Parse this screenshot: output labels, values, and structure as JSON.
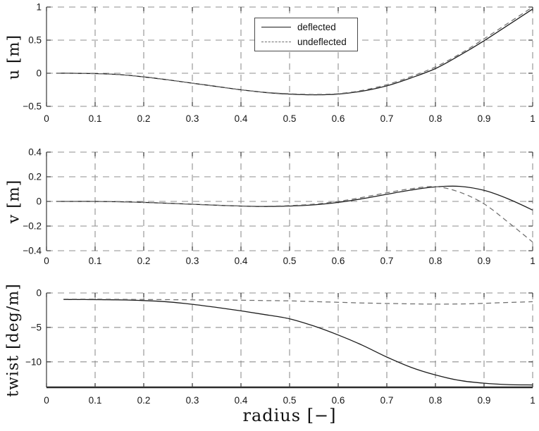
{
  "figure": {
    "legend": {
      "entries": [
        "deflected",
        "undeflected"
      ],
      "position": "upper area of first subplot, center-right"
    },
    "colors": {
      "background": "#ffffff",
      "curve_solid": "#1c1c1c",
      "curve_dashed": "#6e6e6e",
      "grid": "#8f8f8f",
      "axis": "#3a3a3a",
      "bottom_axis": "#2b2b2b",
      "text": "#161616"
    }
  },
  "chart_data": [
    {
      "type": "line",
      "ylabel": "u [m]",
      "xlim": [
        0,
        1
      ],
      "ylim": [
        -0.5,
        1
      ],
      "grid": true,
      "xtick_values": [
        0,
        0.1,
        0.2,
        0.3,
        0.4,
        0.5,
        0.6,
        0.7,
        0.8,
        0.9,
        1
      ],
      "xtick_labels": [
        "0",
        "0.1",
        "0.2",
        "0.3",
        "0.4",
        "0.5",
        "0.6",
        "0.7",
        "0.8",
        "0.9",
        "1"
      ],
      "ytick_values": [
        1,
        0.5,
        0,
        -0.5
      ],
      "ytick_labels": [
        "1",
        "0.5",
        "0",
        "−0.5"
      ],
      "x": [
        0.02,
        0.05,
        0.1,
        0.15,
        0.2,
        0.25,
        0.3,
        0.35,
        0.4,
        0.45,
        0.5,
        0.55,
        0.6,
        0.65,
        0.7,
        0.75,
        0.8,
        0.85,
        0.9,
        0.95,
        1
      ],
      "series": [
        {
          "name": "deflected",
          "line_style": "solid",
          "values": [
            0,
            0,
            -0.005,
            -0.02,
            -0.055,
            -0.1,
            -0.15,
            -0.2,
            -0.25,
            -0.29,
            -0.315,
            -0.325,
            -0.315,
            -0.27,
            -0.19,
            -0.07,
            0.07,
            0.27,
            0.49,
            0.73,
            0.97
          ]
        },
        {
          "name": "undeflected",
          "line_style": "dashed",
          "values": [
            0,
            0,
            -0.005,
            -0.02,
            -0.055,
            -0.1,
            -0.15,
            -0.2,
            -0.25,
            -0.288,
            -0.31,
            -0.32,
            -0.308,
            -0.258,
            -0.172,
            -0.05,
            0.095,
            0.29,
            0.52,
            0.76,
            1.0
          ]
        }
      ]
    },
    {
      "type": "line",
      "ylabel": "v [m]",
      "xlim": [
        0,
        1
      ],
      "ylim": [
        -0.4,
        0.4
      ],
      "grid": true,
      "xtick_values": [
        0,
        0.1,
        0.2,
        0.3,
        0.4,
        0.5,
        0.6,
        0.7,
        0.8,
        0.9,
        1
      ],
      "xtick_labels": [
        "0",
        "0.1",
        "0.2",
        "0.3",
        "0.4",
        "0.5",
        "0.6",
        "0.7",
        "0.8",
        "0.9",
        "1"
      ],
      "ytick_values": [
        0.4,
        0.2,
        0,
        -0.2,
        -0.4
      ],
      "ytick_labels": [
        "0.4",
        "0.2",
        "0",
        "−0.2",
        "−0.4"
      ],
      "x": [
        0.02,
        0.05,
        0.1,
        0.15,
        0.2,
        0.25,
        0.3,
        0.35,
        0.4,
        0.45,
        0.5,
        0.55,
        0.6,
        0.65,
        0.7,
        0.75,
        0.8,
        0.85,
        0.9,
        0.95,
        1
      ],
      "series": [
        {
          "name": "deflected",
          "line_style": "solid",
          "values": [
            0,
            0,
            0,
            -0.003,
            -0.008,
            -0.015,
            -0.023,
            -0.031,
            -0.038,
            -0.041,
            -0.038,
            -0.028,
            -0.008,
            0.022,
            0.058,
            0.092,
            0.118,
            0.122,
            0.09,
            0.02,
            -0.07
          ]
        },
        {
          "name": "undeflected",
          "line_style": "dashed",
          "values": [
            0,
            0,
            0,
            -0.003,
            -0.008,
            -0.015,
            -0.023,
            -0.031,
            -0.037,
            -0.039,
            -0.034,
            -0.022,
            0.0,
            0.033,
            0.07,
            0.103,
            0.12,
            0.075,
            -0.02,
            -0.17,
            -0.33
          ]
        }
      ]
    },
    {
      "type": "line",
      "ylabel": "twist [deg/m]",
      "xlabel": "radius [−]",
      "xlim": [
        0,
        1
      ],
      "ylim": [
        -13.7,
        0
      ],
      "grid": true,
      "xtick_values": [
        0,
        0.1,
        0.2,
        0.3,
        0.4,
        0.5,
        0.6,
        0.7,
        0.8,
        0.9,
        1
      ],
      "xtick_labels": [
        "0",
        "0.1",
        "0.2",
        "0.3",
        "0.4",
        "0.5",
        "0.6",
        "0.7",
        "0.8",
        "0.9",
        "1"
      ],
      "ytick_values": [
        0,
        -5,
        -10
      ],
      "ytick_labels": [
        "0",
        "−5",
        "−10"
      ],
      "x": [
        0.035,
        0.05,
        0.1,
        0.15,
        0.2,
        0.25,
        0.3,
        0.35,
        0.4,
        0.45,
        0.5,
        0.55,
        0.6,
        0.65,
        0.7,
        0.75,
        0.8,
        0.85,
        0.9,
        0.95,
        1
      ],
      "series": [
        {
          "name": "deflected",
          "line_style": "solid",
          "values": [
            -0.95,
            -0.95,
            -0.97,
            -1.0,
            -1.1,
            -1.3,
            -1.65,
            -2.1,
            -2.6,
            -3.15,
            -3.75,
            -4.8,
            -6.1,
            -7.6,
            -9.3,
            -10.8,
            -11.9,
            -12.7,
            -13.1,
            -13.3,
            -13.35
          ]
        },
        {
          "name": "undeflected",
          "line_style": "dashed",
          "values": [
            -0.9,
            -0.9,
            -0.9,
            -0.92,
            -0.95,
            -0.97,
            -1.0,
            -1.02,
            -1.05,
            -1.1,
            -1.15,
            -1.25,
            -1.35,
            -1.45,
            -1.52,
            -1.58,
            -1.62,
            -1.6,
            -1.5,
            -1.38,
            -1.27
          ]
        }
      ]
    }
  ]
}
